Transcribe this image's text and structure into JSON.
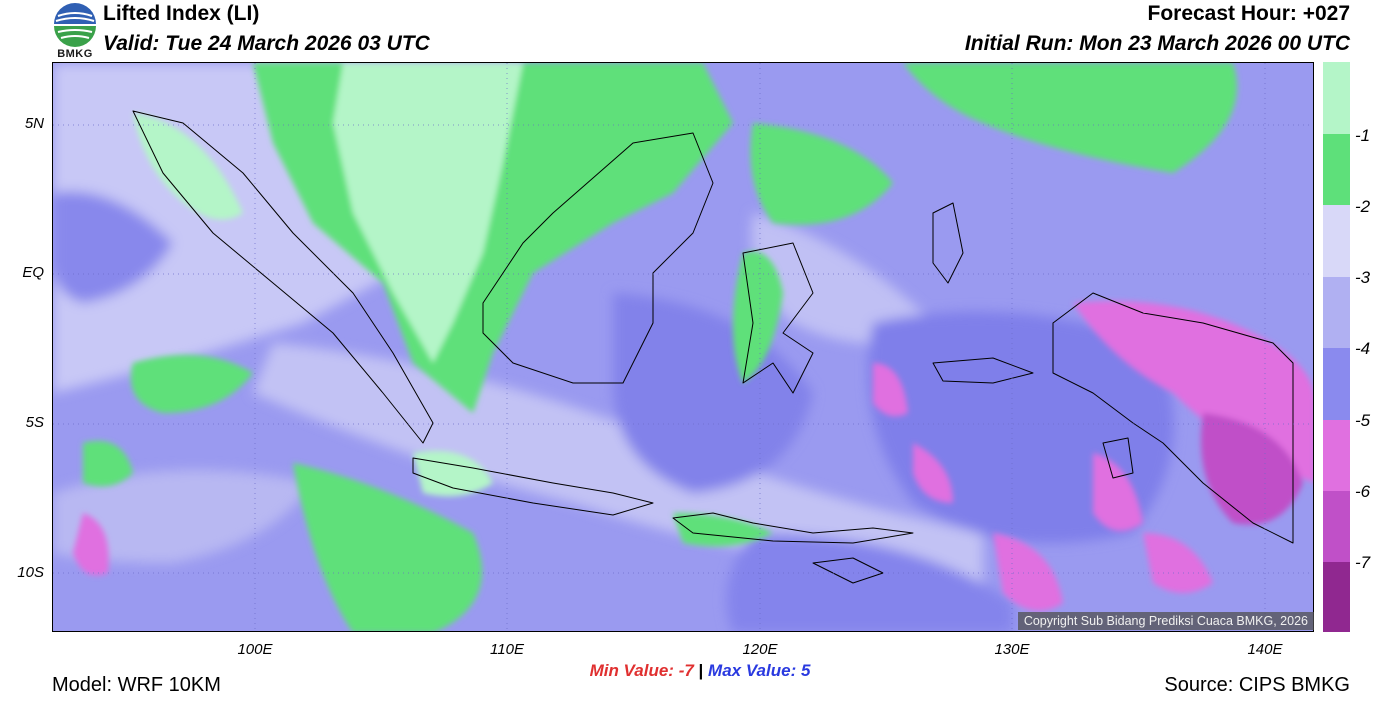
{
  "header": {
    "title": "Lifted Index (LI)",
    "valid": "Valid: Tue 24 March 2026 03 UTC",
    "forecast_hour": "Forecast Hour: +027",
    "initial_run": "Initial Run: Mon 23 March 2026 00 UTC",
    "logo_text": "BMKG"
  },
  "map": {
    "lat_labels": [
      "5N",
      "EQ",
      "5S",
      "10S"
    ],
    "lon_labels": [
      "100E",
      "110E",
      "120E",
      "130E",
      "140E"
    ],
    "lat_range": [
      -12,
      7
    ],
    "lon_range": [
      92,
      142
    ],
    "copyright": "Copyright Sub Bidang Prediksi Cuaca BMKG, 2026"
  },
  "colorbar": {
    "labels": [
      "-1",
      "-2",
      "-3",
      "-4",
      "-5",
      "-6",
      "-7"
    ],
    "colors": [
      "#b4f5c8",
      "#5ee07a",
      "#d8d8f8",
      "#b0b0f2",
      "#8a8aee",
      "#e070e0",
      "#c050c8",
      "#902890"
    ]
  },
  "stats": {
    "min_label": "Min Value:",
    "min_value": "-7",
    "separator": "|",
    "max_label": "Max Value:",
    "max_value": "5"
  },
  "footer": {
    "model": "Model: WRF 10KM",
    "source": "Source: CIPS BMKG"
  }
}
